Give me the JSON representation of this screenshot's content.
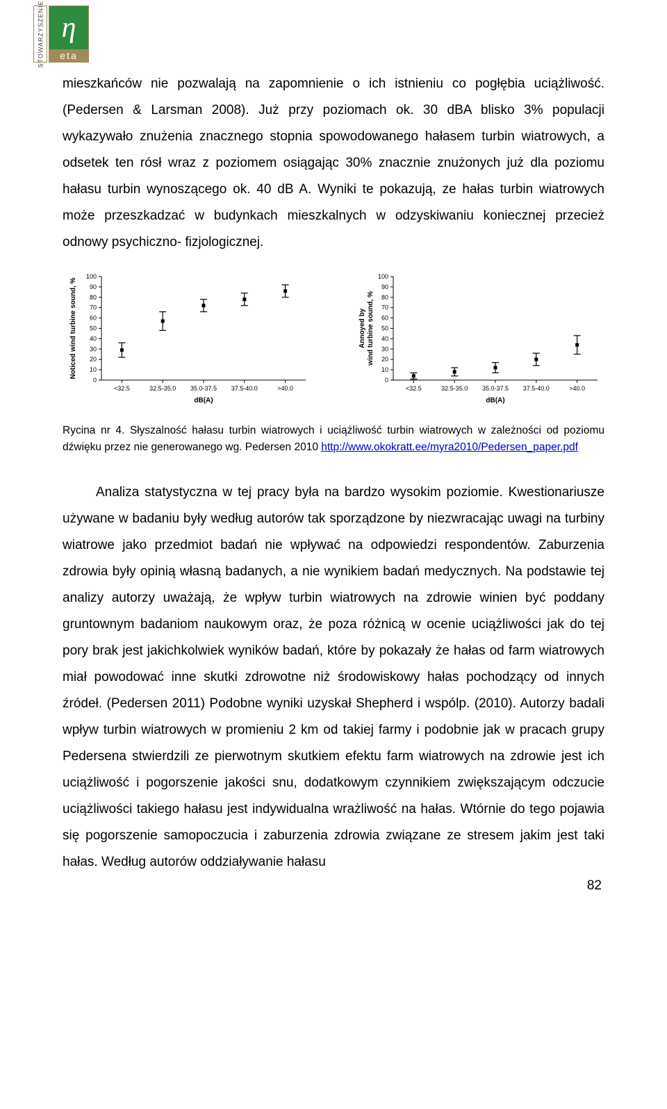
{
  "logo": {
    "vertical": "STOWARZYSZENIE",
    "main_symbol": "η",
    "sub": "eta"
  },
  "para1_pre": "mieszkańców nie pozwalają na zapomnienie o ich istnieniu co pogłębia uciążliwość. (Pedersen & Larsman 2008). Już przy poziomach ok. 30 dBA blisko 3% populacji wykazywało znużenia znacznego stopnia spowodowanego hałasem turbin wiatrowych, a odsetek ten rósł wraz z poziomem osiągając 30% znacznie znużonych już dla poziomu hałasu turbin wynoszącego ok. 40 dB A. Wyniki te pokazują, ze hałas turbin wiatrowych może przeszkadzać w budynkach mieszkalnych w odzyskiwaniu koniecznej przecież odnowy psychiczno- fizjologicznej.",
  "caption": {
    "lead": "Rycina nr 4. Słyszalność hałasu turbin wiatrowych i uciążliwość turbin wiatrowych w zależności od poziomu dźwięku przez nie generowanego wg. Pedersen 2010 ",
    "link": "http://www.okokratt.ee/myra2010/Pedersen_paper.pdf"
  },
  "para2": "Analiza statystyczna w tej pracy była na bardzo wysokim poziomie. Kwestionariusze używane w badaniu były według autorów tak sporządzone by niezwracając uwagi na turbiny wiatrowe jako przedmiot badań nie wpływać na odpowiedzi respondentów. Zaburzenia zdrowia były opinią własną badanych, a nie wynikiem badań medycznych. Na podstawie tej analizy autorzy uważają, że wpływ turbin wiatrowych na zdrowie winien być poddany gruntownym badaniom naukowym oraz, że poza różnicą w ocenie uciążliwości jak do tej pory brak jest jakichkolwiek wyników badań, które by pokazały że hałas od farm wiatrowych miał powodować inne skutki zdrowotne niż środowiskowy hałas pochodzący od innych źródeł. (Pedersen 2011) Podobne wyniki uzyskał Shepherd i wspólp. (2010). Autorzy badali wpływ turbin wiatrowych w promieniu 2 km od takiej farmy i podobnie jak w pracach grupy Pedersena stwierdzili ze pierwotnym skutkiem efektu farm wiatrowych na zdrowie jest ich uciążliwość i pogorszenie jakości snu, dodatkowym czynnikiem zwiększającym odczucie uciążliwości takiego hałasu jest indywidualna wrażliwość na hałas. Wtórnie do tego pojawia się pogorszenie samopoczucia i zaburzenia zdrowia związane ze stresem jakim jest taki hałas. Według autorów oddziaływanie hałasu",
  "page_number": "82",
  "chart_left": {
    "type": "scatter_error",
    "y_label": "Noticed wind turbine sound, %",
    "x_label": "dB(A)",
    "categories": [
      "<32.5",
      "32.5-35.0",
      "35.0-37.5",
      "37.5-40.0",
      ">40.0"
    ],
    "values": [
      29,
      57,
      72,
      78,
      86
    ],
    "err_low": [
      22,
      48,
      66,
      72,
      80
    ],
    "err_high": [
      36,
      66,
      78,
      84,
      92
    ],
    "ylim": [
      0,
      100
    ],
    "ytick_step": 10,
    "marker_size": 5,
    "line_color": "#000000",
    "background_color": "#ffffff",
    "axis_fontsize": 9,
    "label_fontsize": 10
  },
  "chart_right": {
    "type": "scatter_error",
    "y_label_line1": "Annoyed by",
    "y_label_line2": "wind turbine sound, %",
    "x_label": "dB(A)",
    "categories": [
      "<32.5",
      "32.5-35.0",
      "35.0-37.5",
      "37.5-40.0",
      ">40.0"
    ],
    "values": [
      4,
      8,
      12,
      20,
      34
    ],
    "err_low": [
      1,
      4,
      7,
      14,
      25
    ],
    "err_high": [
      7,
      12,
      17,
      26,
      43
    ],
    "ylim": [
      0,
      100
    ],
    "ytick_step": 10,
    "marker_size": 5,
    "line_color": "#000000",
    "background_color": "#ffffff",
    "axis_fontsize": 9,
    "label_fontsize": 10
  }
}
